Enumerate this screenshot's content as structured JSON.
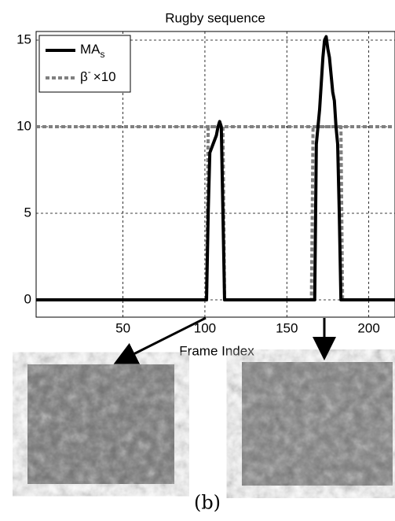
{
  "chart_data": {
    "type": "line",
    "title": "Rugby sequence",
    "xlabel": "Frame Index",
    "xlim": [
      -3,
      216
    ],
    "ylim": [
      -1,
      15.5
    ],
    "xticks": [
      50,
      100,
      150,
      200
    ],
    "yticks": [
      0,
      5,
      10,
      15
    ],
    "grid": true,
    "legend": "upper left",
    "reference_line": 10,
    "series": [
      {
        "name": "MA",
        "subscript": "s",
        "color": "#000000",
        "style": "solid",
        "x": [
          -3,
          101,
          102,
          103,
          105,
          107,
          108,
          109,
          110,
          111,
          112,
          167,
          168,
          169,
          170,
          171,
          172,
          173,
          174,
          175,
          176,
          177,
          178,
          179,
          180,
          181,
          182,
          183,
          216
        ],
        "values": [
          0,
          0,
          5,
          8.5,
          9,
          9.5,
          10,
          10.3,
          10,
          5,
          0,
          0,
          9,
          10,
          11,
          12.5,
          14,
          15,
          15.2,
          14.5,
          14,
          13,
          12,
          11.5,
          10,
          9,
          5,
          0,
          0
        ]
      },
      {
        "name": "β",
        "superscript": "-",
        "suffix": "×10",
        "color": "#808080",
        "style": "dotted",
        "x": [
          -3,
          101,
          102,
          111,
          112,
          165,
          166,
          183,
          184,
          216
        ],
        "values": [
          0,
          0,
          10,
          10,
          0,
          0,
          10,
          10,
          0,
          0
        ]
      }
    ],
    "caption": "(b)"
  }
}
